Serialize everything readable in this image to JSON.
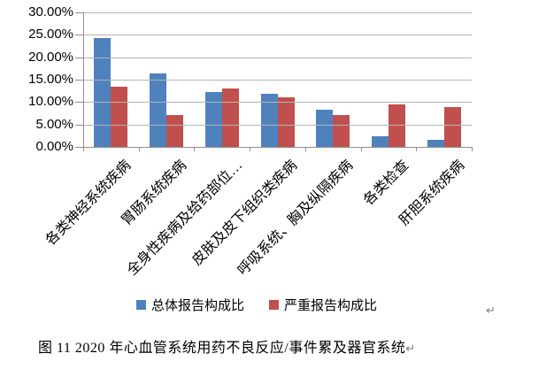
{
  "chart_data": {
    "type": "bar",
    "title": "",
    "categories": [
      "各类神经系统疾病",
      "胃肠系统疾病",
      "全身性疾病及给药部位…",
      "皮肤及皮下组织类疾病",
      "呼吸系统、胸及纵隔疾病",
      "各类检查",
      "肝胆系统疾病"
    ],
    "series": [
      {
        "name": "总体报告构成比",
        "color": "#4F81BD",
        "values": [
          24.3,
          16.3,
          12.3,
          11.8,
          8.3,
          2.3,
          1.6
        ]
      },
      {
        "name": "严重报告构成比",
        "color": "#C0504D",
        "values": [
          13.5,
          7.1,
          13.1,
          11.1,
          7.1,
          9.5,
          8.8
        ]
      }
    ],
    "ylim": [
      0,
      30
    ],
    "ytick_step": 5,
    "ytick_labels_top_to_bottom": [
      "30.00%",
      "25.00%",
      "20.00%",
      "15.00%",
      "10.00%",
      "5.00%",
      "0.00%"
    ],
    "xlabel": "",
    "ylabel": "",
    "grid": true,
    "legend_position": "bottom",
    "x_label_rotation_deg": -45
  },
  "caption": {
    "text": "图 11  2020 年心血管系统用药不良反应/事件累及器官系统"
  },
  "marks": {
    "after_chart": "↵",
    "after_caption": "↵"
  }
}
